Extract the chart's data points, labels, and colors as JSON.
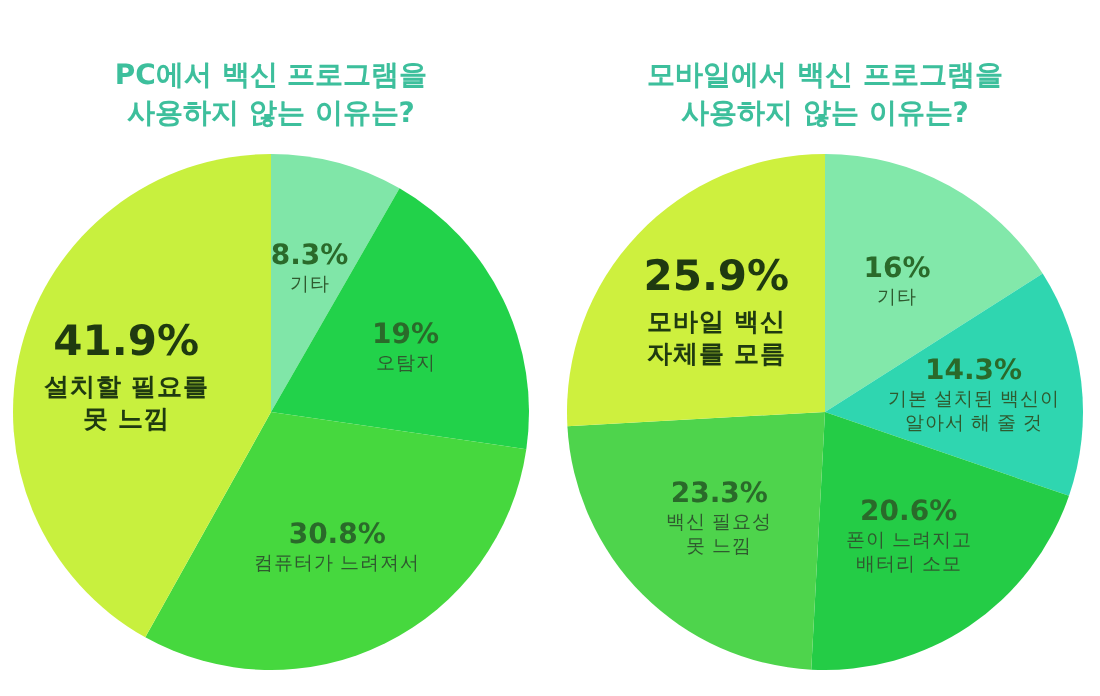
{
  "chart_data": [
    {
      "type": "pie",
      "title": "PC에서 백신 프로그램을\n사용하지 않는 이유는?",
      "categories": [
        "기타",
        "오탐지",
        "컴퓨터가 느려져서",
        "설치할 필요를\n못 느낌"
      ],
      "values": [
        8.3,
        19,
        30.8,
        41.9
      ],
      "value_labels": [
        "8.3%",
        "19%",
        "30.8%",
        "41.9%"
      ],
      "colors": [
        "#80e6a8",
        "#22d24a",
        "#46d83e",
        "#c8f03e"
      ]
    },
    {
      "type": "pie",
      "title": "모바일에서 백신 프로그램을\n사용하지 않는 이유는?",
      "categories": [
        "기타",
        "기본 설치된 백신이\n알아서 해 줄 것",
        "폰이 느려지고\n배터리 소모",
        "백신 필요성\n못 느낌",
        "모바일 백신\n자체를 모름"
      ],
      "values": [
        16,
        14.3,
        20.6,
        23.3,
        25.9
      ],
      "value_labels": [
        "16%",
        "14.3%",
        "20.6%",
        "23.3%",
        "25.9%"
      ],
      "colors": [
        "#82e8aa",
        "#2fd6b0",
        "#24cc46",
        "#4ed44c",
        "#cef03e"
      ]
    }
  ]
}
